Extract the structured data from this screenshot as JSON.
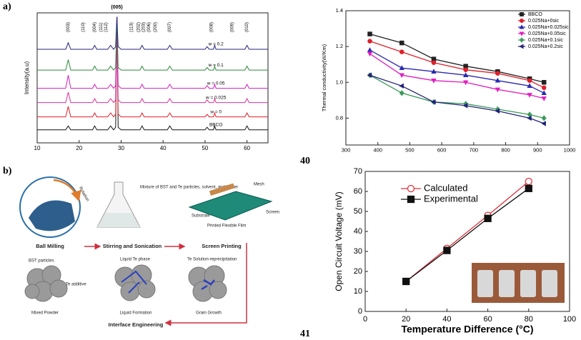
{
  "panels": {
    "a": "a)",
    "b": "b)"
  },
  "page_numbers": [
    "40",
    "41"
  ],
  "diagram": {
    "steps": [
      "Ball Milling",
      "Stirring and Sonication",
      "Screen Printing"
    ],
    "rotation": "Rotation",
    "mixture": "Mixture of BST and Te particles, solvent, and binder",
    "screen_parts": [
      "Mesh",
      "Substrate",
      "Screen",
      "Printed Flexible Film"
    ],
    "stages": [
      "Mixed Powder",
      "Liquid Formation",
      "Grain Growth"
    ],
    "stage_notes": [
      "BST particles",
      "Te additive",
      "Liquid Te phase",
      "Te Solution-reprecipitation"
    ],
    "interface": "Interface Engineering"
  },
  "chart_data": [
    {
      "type": "line",
      "ylabel": "Intensity(a.u)",
      "legend": "inline",
      "grid": false,
      "xlim": [
        10,
        65
      ],
      "xticks": [
        10,
        20,
        30,
        40,
        50,
        60
      ],
      "ylim": [
        0,
        10
      ],
      "annotations": [
        "(003)",
        "(110)",
        "(004)",
        "(111)",
        "(112)",
        "(005)",
        "(113)",
        "(202)",
        "(203)",
        "(006)",
        "(200)",
        "(007)",
        "(008)",
        "(009)",
        "(010)"
      ],
      "x": [
        10,
        14,
        16.8,
        17.4,
        18,
        21,
        23.2,
        23.7,
        24.2,
        26.8,
        27.5,
        28.2,
        28.7,
        29,
        29.3,
        30,
        34.5,
        35,
        35.5,
        41,
        41.6,
        42.2,
        50,
        50.5,
        51,
        52,
        52.3,
        52.6,
        59.5,
        60,
        60.5,
        65
      ],
      "series": [
        {
          "name": "BBCO",
          "color": "#111111",
          "values": [
            1.0,
            1.0,
            1.0,
            1.3,
            1.0,
            1.0,
            1.0,
            1.3,
            1.0,
            1.0,
            1.3,
            1.0,
            1.2,
            9.7,
            1.2,
            1.0,
            1.0,
            1.3,
            1.0,
            1.0,
            1.3,
            1.0,
            1.0,
            1.2,
            1.0,
            1.0,
            1.3,
            1.0,
            1.0,
            1.3,
            1.0,
            1.0
          ]
        },
        {
          "name": "w = 0",
          "color": "#e0202a",
          "values": [
            2.0,
            2.0,
            2.0,
            2.8,
            2.0,
            2.0,
            2.0,
            2.3,
            2.0,
            2.0,
            2.3,
            2.0,
            2.2,
            9.7,
            2.2,
            2.0,
            2.0,
            2.3,
            2.0,
            2.0,
            2.3,
            2.0,
            2.0,
            2.2,
            2.0,
            2.0,
            2.3,
            2.0,
            2.0,
            2.3,
            2.0,
            2.0
          ]
        },
        {
          "name": "w = 0.025",
          "color": "#e0309a",
          "values": [
            3.1,
            3.1,
            3.1,
            3.9,
            3.1,
            3.1,
            3.1,
            3.4,
            3.1,
            3.1,
            3.4,
            3.1,
            3.3,
            9.7,
            3.3,
            3.1,
            3.1,
            3.4,
            3.1,
            3.1,
            3.4,
            3.1,
            3.1,
            3.3,
            3.1,
            3.1,
            3.4,
            3.1,
            3.1,
            3.4,
            3.1,
            3.1
          ]
        },
        {
          "name": "w = 0.05",
          "color": "#d01fc0",
          "values": [
            4.2,
            4.2,
            4.2,
            5.2,
            4.2,
            4.2,
            4.2,
            4.5,
            4.2,
            4.2,
            4.5,
            4.2,
            4.4,
            9.7,
            4.4,
            4.2,
            4.2,
            4.5,
            4.2,
            4.2,
            4.5,
            4.2,
            4.2,
            4.4,
            4.2,
            4.2,
            4.5,
            4.2,
            4.2,
            4.5,
            4.2,
            4.2
          ]
        },
        {
          "name": "w = 0.1",
          "color": "#2e8b3a",
          "values": [
            5.6,
            5.6,
            5.6,
            6.4,
            5.6,
            5.6,
            5.6,
            5.9,
            5.6,
            5.6,
            5.9,
            5.6,
            5.8,
            9.7,
            5.8,
            5.6,
            5.6,
            5.9,
            5.6,
            5.6,
            5.9,
            5.6,
            5.6,
            5.8,
            5.6,
            5.6,
            5.9,
            5.6,
            5.6,
            5.9,
            5.6,
            5.6
          ]
        },
        {
          "name": "w = 0.2",
          "color": "#23237a",
          "values": [
            7.2,
            7.2,
            7.2,
            7.7,
            7.2,
            7.2,
            7.2,
            7.5,
            7.2,
            7.2,
            7.5,
            7.2,
            7.4,
            9.7,
            7.4,
            7.2,
            7.2,
            7.5,
            7.2,
            7.2,
            7.5,
            7.2,
            7.2,
            7.4,
            7.2,
            7.2,
            7.5,
            7.2,
            7.2,
            7.5,
            7.2,
            7.2
          ]
        }
      ]
    },
    {
      "type": "line",
      "ylabel": "Thermal conductivity(W/Km)",
      "legend": "upper right",
      "grid": false,
      "xlim": [
        300,
        1000
      ],
      "xticks": [
        300,
        400,
        500,
        600,
        700,
        800,
        900,
        1000
      ],
      "ylim": [
        0.65,
        1.4
      ],
      "yticks": [
        0.8,
        {
          "value": 1,
          "label": "1.0"
        },
        1.2,
        1.4
      ],
      "x": [
        375,
        475,
        575,
        675,
        775,
        875,
        920
      ],
      "series": [
        {
          "name": "BBCO",
          "color": "#222222",
          "marker": "square",
          "filled": true,
          "values": [
            1.27,
            1.22,
            1.13,
            1.09,
            1.06,
            1.02,
            1.0
          ]
        },
        {
          "name": "0.025Na+0sic",
          "color": "#e0202a",
          "marker": "circle",
          "filled": true,
          "values": [
            1.23,
            1.17,
            1.11,
            1.07,
            1.05,
            1.01,
            0.97
          ]
        },
        {
          "name": "0.025Na+0.025sic",
          "color": "#2a2ab0",
          "marker": "triangle-up",
          "filled": true,
          "values": [
            1.18,
            1.08,
            1.06,
            1.04,
            1.01,
            0.98,
            0.94
          ]
        },
        {
          "name": "0.025Na+0.05sic",
          "color": "#e020c0",
          "marker": "triangle-down",
          "filled": true,
          "values": [
            1.16,
            1.04,
            1.01,
            1.0,
            0.96,
            0.93,
            0.91
          ]
        },
        {
          "name": "0.025Na+0.1sic",
          "color": "#3a9a5a",
          "marker": "diamond",
          "filled": true,
          "values": [
            1.04,
            0.94,
            0.89,
            0.88,
            0.85,
            0.82,
            0.8
          ]
        },
        {
          "name": "0.025Na+0.2sic",
          "color": "#23237a",
          "marker": "triangle-left",
          "filled": true,
          "values": [
            1.04,
            0.98,
            0.89,
            0.87,
            0.84,
            0.8,
            0.77
          ]
        }
      ]
    },
    {
      "type": "line",
      "xlabel": "Temperature Difference (°C)",
      "ylabel": "Open Circuit Voltage (mV)",
      "legend": "upper left",
      "grid": false,
      "xlim": [
        0,
        100
      ],
      "xticks": [
        0,
        20,
        40,
        60,
        80,
        100
      ],
      "ylim": [
        0,
        70
      ],
      "yticks": [
        0,
        10,
        20,
        30,
        40,
        50,
        60,
        70
      ],
      "x": [
        20,
        40,
        60,
        80
      ],
      "series": [
        {
          "name": "Calculated",
          "color": "#e0303a",
          "marker": "circle",
          "filled": false,
          "values": [
            15,
            31.5,
            48,
            65
          ]
        },
        {
          "name": "Experimental",
          "color": "#111111",
          "marker": "square",
          "filled": true,
          "values": [
            15,
            30.5,
            46.5,
            61.5
          ]
        }
      ]
    }
  ]
}
